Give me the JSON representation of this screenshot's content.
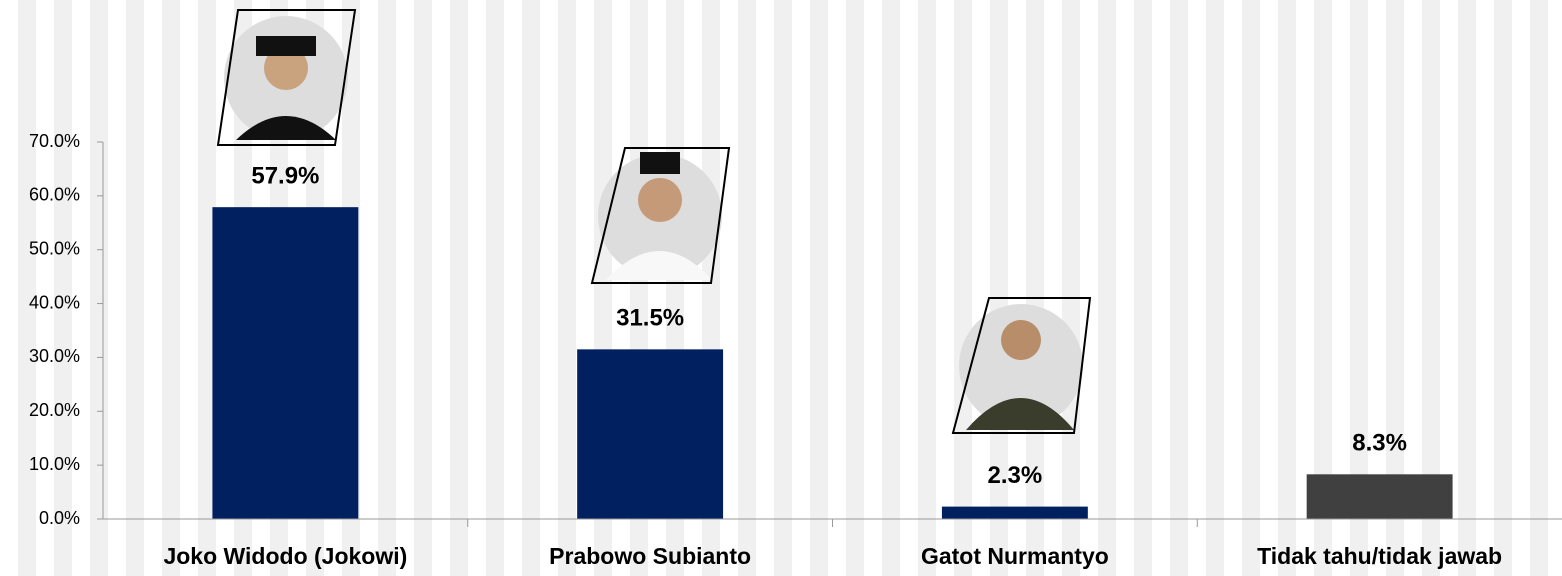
{
  "chart_data": {
    "type": "bar",
    "categories": [
      "Joko Widodo (Jokowi)",
      "Prabowo Subianto",
      "Gatot Nurmantyo",
      "Tidak tahu/tidak jawab"
    ],
    "values": [
      57.9,
      31.5,
      2.3,
      8.3
    ],
    "value_labels": [
      "57.9%",
      "31.5%",
      "2.3%",
      "8.3%"
    ],
    "colors": [
      "#002060",
      "#002060",
      "#002060",
      "#404040"
    ],
    "ylim": [
      0,
      70
    ],
    "yticks": [
      {
        "value": 0,
        "label": "0.0%"
      },
      {
        "value": 10,
        "label": "10.0%"
      },
      {
        "value": 20,
        "label": "20.0%"
      },
      {
        "value": 30,
        "label": "30.0%"
      },
      {
        "value": 40,
        "label": "40.0%"
      },
      {
        "value": 50,
        "label": "50.0%"
      },
      {
        "value": 60,
        "label": "60.0%"
      },
      {
        "value": 70,
        "label": "70.0%"
      }
    ]
  }
}
